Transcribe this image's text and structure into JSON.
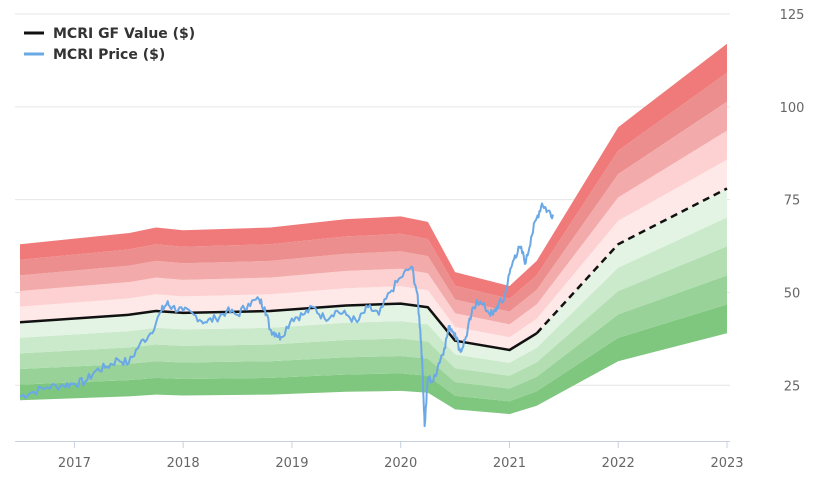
{
  "chart_data": {
    "type": "area",
    "title": "",
    "xlabel": "",
    "ylabel": "",
    "xlim": [
      2016.5,
      2023.05
    ],
    "ylim": [
      10,
      125
    ],
    "x_ticks": [
      {
        "value": 2017,
        "label": "2017"
      },
      {
        "value": 2018,
        "label": "2018"
      },
      {
        "value": 2019,
        "label": "2019"
      },
      {
        "value": 2020,
        "label": "2020"
      },
      {
        "value": 2021,
        "label": "2021"
      },
      {
        "value": 2022,
        "label": "2022"
      },
      {
        "value": 2023,
        "label": "2023"
      }
    ],
    "y_ticks": [
      {
        "value": 25,
        "label": "25"
      },
      {
        "value": 50,
        "label": "50"
      },
      {
        "value": 75,
        "label": "75"
      },
      {
        "value": 100,
        "label": "100"
      },
      {
        "value": 125,
        "label": "125"
      }
    ],
    "grid": "horizontal",
    "legend_position": "top-left",
    "legend": [
      {
        "name": "MCRI GF Value ($)",
        "color": "#111111",
        "style": "solid"
      },
      {
        "name": "MCRI Price ($)",
        "color": "#6aa8e6",
        "style": "solid"
      }
    ],
    "gf_value": {
      "name": "MCRI GF Value ($)",
      "x": [
        2016.5,
        2017.5,
        2017.75,
        2018.0,
        2018.8,
        2019.5,
        2020.0,
        2020.25,
        2020.5,
        2021.0,
        2021.25,
        2022.0,
        2023.0
      ],
      "values": [
        42.0,
        44.0,
        45.0,
        44.5,
        45.0,
        46.5,
        47.0,
        46.0,
        37.0,
        34.5,
        39.0,
        63.0,
        78.0
      ],
      "projected_from": 2021.25
    },
    "band_multipliers": [
      0.5,
      0.6,
      0.7,
      0.8,
      0.9,
      1.0,
      1.1,
      1.2,
      1.3,
      1.4,
      1.5
    ],
    "band_colors_below": [
      "#7fc77f",
      "#98d298",
      "#b2deb2",
      "#cbe9cb",
      "#e4f4e4"
    ],
    "band_colors_above": [
      "#ffe8e8",
      "#fdd1d1",
      "#f3aaaa",
      "#ec8e8e",
      "#f07a7a"
    ],
    "price": {
      "name": "MCRI Price ($)",
      "x": [
        2016.5,
        2016.6,
        2016.75,
        2016.9,
        2017.0,
        2017.1,
        2017.2,
        2017.3,
        2017.4,
        2017.5,
        2017.6,
        2017.7,
        2017.8,
        2017.85,
        2017.9,
        2018.0,
        2018.1,
        2018.2,
        2018.3,
        2018.4,
        2018.5,
        2018.6,
        2018.7,
        2018.75,
        2018.8,
        2018.85,
        2018.9,
        2019.0,
        2019.1,
        2019.2,
        2019.3,
        2019.4,
        2019.5,
        2019.6,
        2019.7,
        2019.8,
        2019.9,
        2020.0,
        2020.1,
        2020.15,
        2020.18,
        2020.2,
        2020.22,
        2020.25,
        2020.3,
        2020.35,
        2020.4,
        2020.45,
        2020.5,
        2020.55,
        2020.6,
        2020.65,
        2020.7,
        2020.8,
        2020.85,
        2020.9,
        2020.95,
        2021.0,
        2021.05,
        2021.1,
        2021.15,
        2021.2,
        2021.25,
        2021.3,
        2021.35,
        2021.4
      ],
      "values": [
        22.0,
        23.0,
        24.5,
        25.0,
        25.5,
        26.0,
        29.0,
        30.0,
        32.0,
        31.0,
        36.0,
        39.0,
        45.0,
        47.0,
        46.0,
        45.0,
        44.0,
        42.0,
        43.0,
        45.0,
        44.0,
        47.0,
        48.0,
        46.0,
        40.0,
        39.0,
        38.0,
        43.0,
        44.0,
        46.0,
        43.0,
        45.0,
        44.0,
        42.0,
        46.0,
        44.0,
        50.0,
        54.0,
        57.0,
        50.0,
        40.0,
        30.0,
        14.0,
        27.0,
        26.0,
        31.0,
        35.0,
        41.0,
        39.0,
        34.0,
        38.0,
        44.0,
        48.0,
        45.0,
        44.0,
        47.0,
        48.0,
        55.0,
        60.0,
        62.0,
        58.0,
        65.0,
        70.0,
        74.0,
        72.0,
        71.0
      ]
    }
  }
}
